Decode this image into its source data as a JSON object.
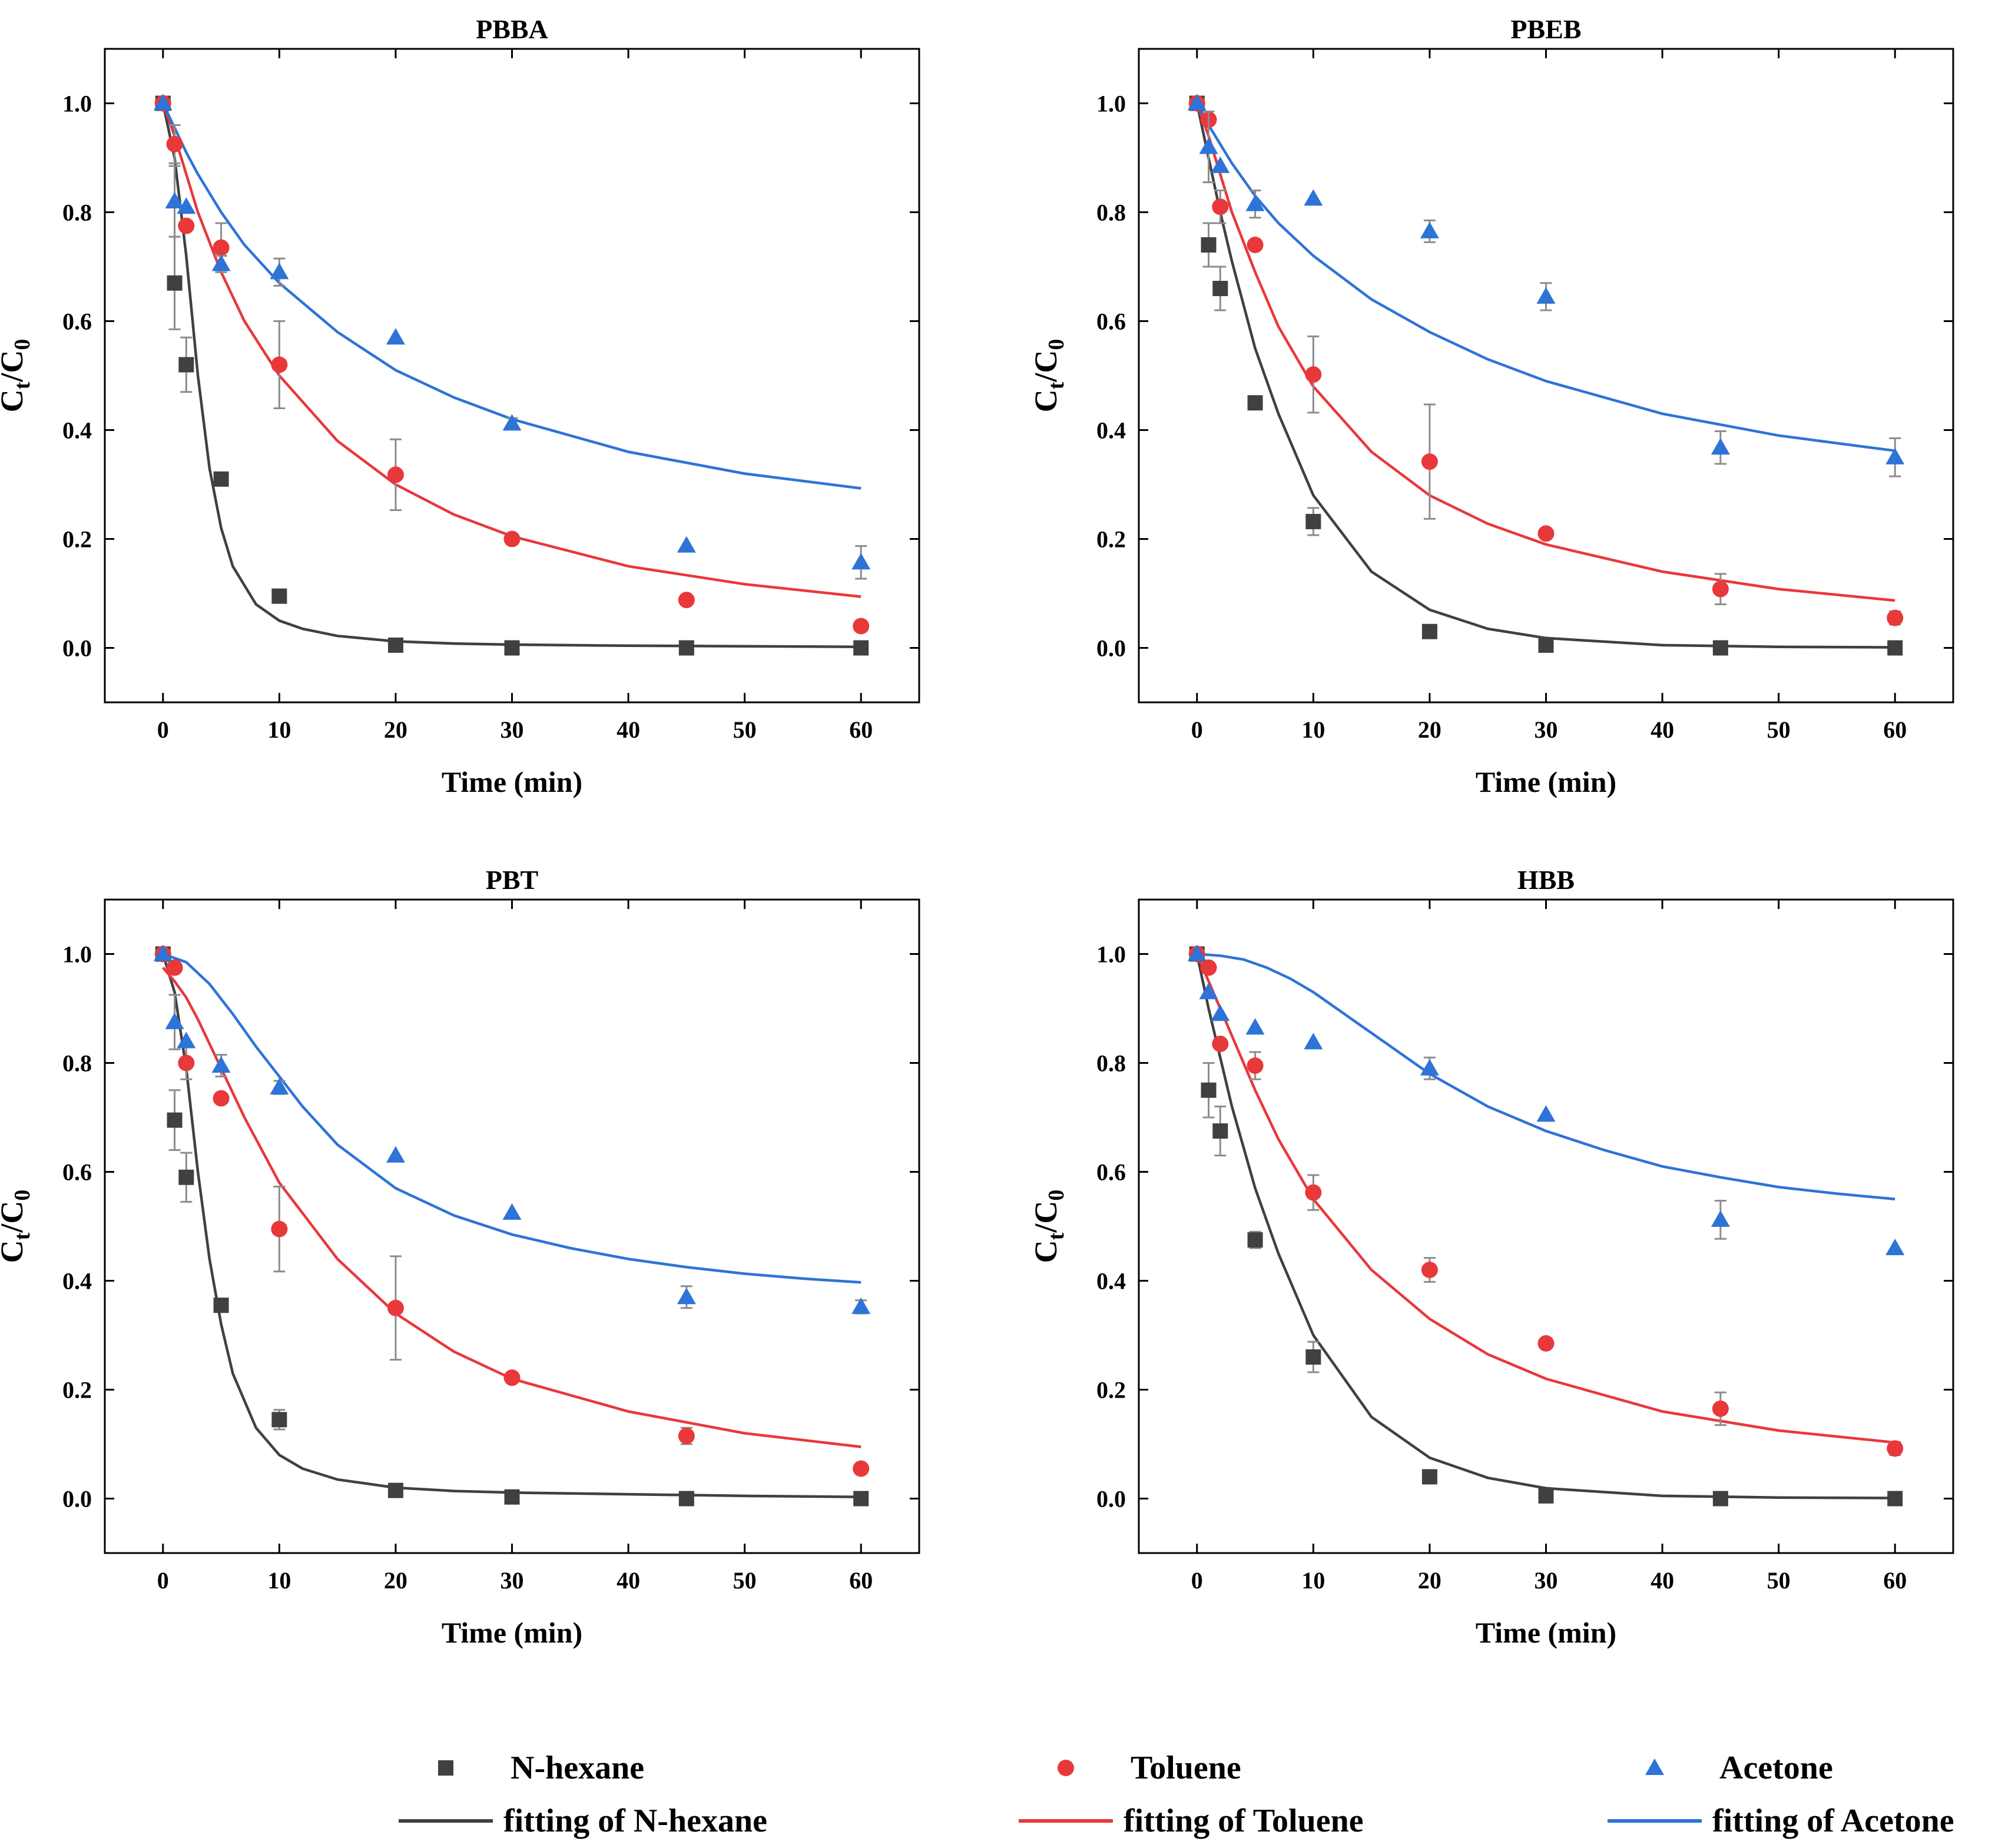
{
  "figure": {
    "xlabel": "Time (min)",
    "ylabel_main": "C",
    "ylabel_sub1": "t",
    "ylabel_sep": "/C",
    "ylabel_sub2": "0"
  },
  "colors": {
    "nhexane": "#404040",
    "toluene": "#e8383a",
    "acetone": "#2e73d6",
    "axis": "#000000",
    "error": "#8c8c8c"
  },
  "legend": {
    "nhexane": "N-hexane",
    "toluene": "Toluene",
    "acetone": "Acetone",
    "fit_nhexane": "fitting of N-hexane",
    "fit_toluene": "fitting of Toluene",
    "fit_acetone": "fitting of Acetone"
  },
  "chart_data": [
    {
      "type": "scatter",
      "title": "PBBA",
      "xlabel": "Time (min)",
      "ylabel": "Ct/C0",
      "xlim": [
        -5,
        65
      ],
      "ylim": [
        -0.1,
        1.1
      ],
      "xticks": [
        0,
        10,
        20,
        30,
        40,
        50,
        60
      ],
      "yticks": [
        0.0,
        0.2,
        0.4,
        0.6,
        0.8,
        1.0
      ],
      "x": [
        0,
        1,
        2,
        5,
        10,
        20,
        30,
        45,
        60
      ],
      "series": [
        {
          "name": "N-hexane",
          "key": "nhexane",
          "marker": "square",
          "values": [
            1.0,
            0.67,
            0.52,
            0.31,
            0.095,
            0.005,
            0.0,
            0.0,
            0.0
          ],
          "errors": [
            0,
            0.085,
            0.05,
            0,
            0.012,
            0,
            0,
            0,
            0
          ],
          "fit": {
            "x": [
              0,
              1,
              2,
              3,
              4,
              5,
              6,
              8,
              10,
              12,
              15,
              20,
              25,
              30,
              40,
              50,
              60
            ],
            "y": [
              1.0,
              0.9,
              0.72,
              0.5,
              0.33,
              0.22,
              0.15,
              0.08,
              0.05,
              0.035,
              0.022,
              0.012,
              0.008,
              0.006,
              0.004,
              0.003,
              0.002
            ]
          }
        },
        {
          "name": "Toluene",
          "key": "toluene",
          "marker": "circle",
          "values": [
            1.0,
            0.925,
            0.775,
            0.735,
            0.52,
            0.318,
            0.2,
            0.088,
            0.04
          ],
          "errors": [
            0,
            0.035,
            0,
            0.045,
            0.08,
            0.065,
            0.008,
            0,
            0
          ],
          "fit": {
            "x": [
              0,
              1,
              2,
              3,
              5,
              7,
              10,
              15,
              20,
              25,
              30,
              40,
              50,
              60
            ],
            "y": [
              1.0,
              0.94,
              0.87,
              0.8,
              0.69,
              0.6,
              0.5,
              0.38,
              0.3,
              0.245,
              0.205,
              0.15,
              0.117,
              0.094
            ]
          }
        },
        {
          "name": "Acetone",
          "key": "acetone",
          "marker": "triangle",
          "values": [
            1.0,
            0.82,
            0.81,
            0.705,
            0.69,
            0.57,
            0.412,
            0.188,
            0.157
          ],
          "errors": [
            0,
            0.065,
            0,
            0.015,
            0.025,
            0,
            0.01,
            0,
            0.03
          ],
          "fit": {
            "x": [
              0,
              1,
              2,
              3,
              5,
              7,
              10,
              15,
              20,
              25,
              30,
              40,
              50,
              60
            ],
            "y": [
              1.0,
              0.955,
              0.91,
              0.87,
              0.8,
              0.74,
              0.67,
              0.58,
              0.51,
              0.46,
              0.42,
              0.36,
              0.32,
              0.293
            ]
          }
        }
      ]
    },
    {
      "type": "scatter",
      "title": "PBEB",
      "xlabel": "Time (min)",
      "ylabel": "Ct/C0",
      "xlim": [
        -5,
        65
      ],
      "ylim": [
        -0.1,
        1.1
      ],
      "xticks": [
        0,
        10,
        20,
        30,
        40,
        50,
        60
      ],
      "yticks": [
        0.0,
        0.2,
        0.4,
        0.6,
        0.8,
        1.0
      ],
      "x": [
        0,
        1,
        2,
        5,
        10,
        20,
        30,
        45,
        60
      ],
      "series": [
        {
          "name": "N-hexane",
          "key": "nhexane",
          "marker": "square",
          "values": [
            1.0,
            0.74,
            0.66,
            0.45,
            0.232,
            0.03,
            0.005,
            0.0,
            0.0
          ],
          "errors": [
            0,
            0.04,
            0.04,
            0.012,
            0.025,
            0,
            0,
            0,
            0
          ],
          "fit": {
            "x": [
              0,
              1,
              2,
              3,
              5,
              7,
              10,
              15,
              20,
              25,
              30,
              40,
              50,
              60
            ],
            "y": [
              1.0,
              0.9,
              0.8,
              0.71,
              0.55,
              0.43,
              0.28,
              0.14,
              0.07,
              0.035,
              0.018,
              0.005,
              0.002,
              0.001
            ]
          }
        },
        {
          "name": "Toluene",
          "key": "toluene",
          "marker": "circle",
          "values": [
            1.0,
            0.97,
            0.81,
            0.74,
            0.502,
            0.342,
            0.21,
            0.108,
            0.055
          ],
          "errors": [
            0,
            0,
            0.03,
            0,
            0.07,
            0.105,
            0,
            0.028,
            0.012
          ],
          "fit": {
            "x": [
              0,
              1,
              2,
              3,
              5,
              7,
              10,
              15,
              20,
              25,
              30,
              40,
              50,
              60
            ],
            "y": [
              1.0,
              0.94,
              0.87,
              0.8,
              0.69,
              0.59,
              0.48,
              0.36,
              0.28,
              0.228,
              0.19,
              0.14,
              0.108,
              0.087
            ]
          }
        },
        {
          "name": "Acetone",
          "key": "acetone",
          "marker": "triangle",
          "values": [
            1.0,
            0.92,
            0.885,
            0.815,
            0.825,
            0.765,
            0.645,
            0.368,
            0.35
          ],
          "errors": [
            0,
            0.065,
            0,
            0.025,
            0,
            0.02,
            0.025,
            0.03,
            0.035
          ],
          "fit": {
            "x": [
              0,
              1,
              2,
              3,
              5,
              7,
              10,
              15,
              20,
              25,
              30,
              40,
              50,
              60
            ],
            "y": [
              1.0,
              0.96,
              0.925,
              0.89,
              0.83,
              0.78,
              0.72,
              0.64,
              0.58,
              0.53,
              0.49,
              0.43,
              0.39,
              0.362
            ]
          }
        }
      ]
    },
    {
      "type": "scatter",
      "title": "PBT",
      "xlabel": "Time (min)",
      "ylabel": "Ct/C0",
      "xlim": [
        -5,
        65
      ],
      "ylim": [
        -0.1,
        1.1
      ],
      "xticks": [
        0,
        10,
        20,
        30,
        40,
        50,
        60
      ],
      "yticks": [
        0.0,
        0.2,
        0.4,
        0.6,
        0.8,
        1.0
      ],
      "x": [
        0,
        1,
        2,
        5,
        10,
        20,
        30,
        45,
        60
      ],
      "series": [
        {
          "name": "N-hexane",
          "key": "nhexane",
          "marker": "square",
          "values": [
            1.0,
            0.695,
            0.59,
            0.355,
            0.145,
            0.015,
            0.003,
            0.0,
            0.0
          ],
          "errors": [
            0,
            0.055,
            0.045,
            0,
            0.018,
            0,
            0,
            0,
            0
          ],
          "fit": {
            "x": [
              0,
              1,
              2,
              3,
              4,
              5,
              6,
              8,
              10,
              12,
              15,
              20,
              25,
              30,
              40,
              50,
              60
            ],
            "y": [
              1.0,
              0.93,
              0.79,
              0.6,
              0.44,
              0.32,
              0.23,
              0.13,
              0.08,
              0.055,
              0.035,
              0.02,
              0.014,
              0.011,
              0.008,
              0.005,
              0.003
            ]
          }
        },
        {
          "name": "Toluene",
          "key": "toluene",
          "marker": "circle",
          "values": [
            1.0,
            0.975,
            0.8,
            0.735,
            0.495,
            0.35,
            0.222,
            0.115,
            0.055
          ],
          "errors": [
            0,
            0,
            0.03,
            0,
            0.078,
            0.095,
            0,
            0.015,
            0
          ],
          "fit": {
            "x": [
              0,
              1,
              2,
              3,
              5,
              7,
              10,
              15,
              20,
              25,
              30,
              40,
              50,
              60
            ],
            "y": [
              0.975,
              0.95,
              0.92,
              0.88,
              0.79,
              0.7,
              0.58,
              0.44,
              0.34,
              0.27,
              0.22,
              0.16,
              0.12,
              0.095
            ]
          }
        },
        {
          "name": "Acetone",
          "key": "acetone",
          "marker": "triangle",
          "values": [
            1.0,
            0.875,
            0.84,
            0.795,
            0.755,
            0.63,
            0.525,
            0.37,
            0.352
          ],
          "errors": [
            0,
            0.05,
            0,
            0.02,
            0.012,
            0,
            0,
            0.02,
            0.012
          ],
          "fit": {
            "x": [
              0,
              2,
              4,
              6,
              8,
              10,
              12,
              15,
              20,
              25,
              30,
              35,
              40,
              45,
              50,
              55,
              60
            ],
            "y": [
              1.0,
              0.985,
              0.945,
              0.89,
              0.83,
              0.775,
              0.72,
              0.65,
              0.57,
              0.52,
              0.485,
              0.46,
              0.44,
              0.425,
              0.413,
              0.404,
              0.397
            ]
          }
        }
      ]
    },
    {
      "type": "scatter",
      "title": "HBB",
      "xlabel": "Time (min)",
      "ylabel": "Ct/C0",
      "xlim": [
        -5,
        65
      ],
      "ylim": [
        -0.1,
        1.1
      ],
      "xticks": [
        0,
        10,
        20,
        30,
        40,
        50,
        60
      ],
      "yticks": [
        0.0,
        0.2,
        0.4,
        0.6,
        0.8,
        1.0
      ],
      "x": [
        0,
        1,
        2,
        5,
        10,
        20,
        30,
        45,
        60
      ],
      "series": [
        {
          "name": "N-hexane",
          "key": "nhexane",
          "marker": "square",
          "values": [
            1.0,
            0.75,
            0.675,
            0.475,
            0.26,
            0.04,
            0.005,
            0.0,
            0.0
          ],
          "errors": [
            0,
            0.05,
            0.045,
            0.015,
            0.028,
            0,
            0,
            0,
            0
          ],
          "fit": {
            "x": [
              0,
              1,
              2,
              3,
              5,
              7,
              10,
              15,
              20,
              25,
              30,
              40,
              50,
              60
            ],
            "y": [
              1.0,
              0.9,
              0.81,
              0.72,
              0.57,
              0.45,
              0.3,
              0.15,
              0.075,
              0.038,
              0.019,
              0.005,
              0.002,
              0.001
            ]
          }
        },
        {
          "name": "Toluene",
          "key": "toluene",
          "marker": "circle",
          "values": [
            1.0,
            0.975,
            0.835,
            0.795,
            0.562,
            0.42,
            0.285,
            0.165,
            0.092
          ],
          "errors": [
            0,
            0,
            0,
            0.025,
            0.032,
            0.022,
            0,
            0.03,
            0.012
          ],
          "fit": {
            "x": [
              0,
              1,
              2,
              3,
              5,
              7,
              10,
              15,
              20,
              25,
              30,
              40,
              50,
              60
            ],
            "y": [
              1.0,
              0.95,
              0.9,
              0.85,
              0.75,
              0.66,
              0.55,
              0.42,
              0.33,
              0.265,
              0.22,
              0.16,
              0.125,
              0.103
            ]
          }
        },
        {
          "name": "Acetone",
          "key": "acetone",
          "marker": "triangle",
          "values": [
            1.0,
            0.93,
            0.89,
            0.865,
            0.838,
            0.79,
            0.705,
            0.512,
            0.46
          ],
          "errors": [
            0,
            0,
            0,
            0,
            0,
            0.02,
            0,
            0.035,
            0
          ],
          "fit": {
            "x": [
              0,
              2,
              4,
              6,
              8,
              10,
              12,
              15,
              20,
              25,
              30,
              35,
              40,
              45,
              50,
              55,
              60
            ],
            "y": [
              1.0,
              0.997,
              0.99,
              0.975,
              0.955,
              0.93,
              0.9,
              0.855,
              0.78,
              0.72,
              0.675,
              0.64,
              0.61,
              0.59,
              0.572,
              0.56,
              0.55
            ]
          }
        }
      ]
    }
  ]
}
